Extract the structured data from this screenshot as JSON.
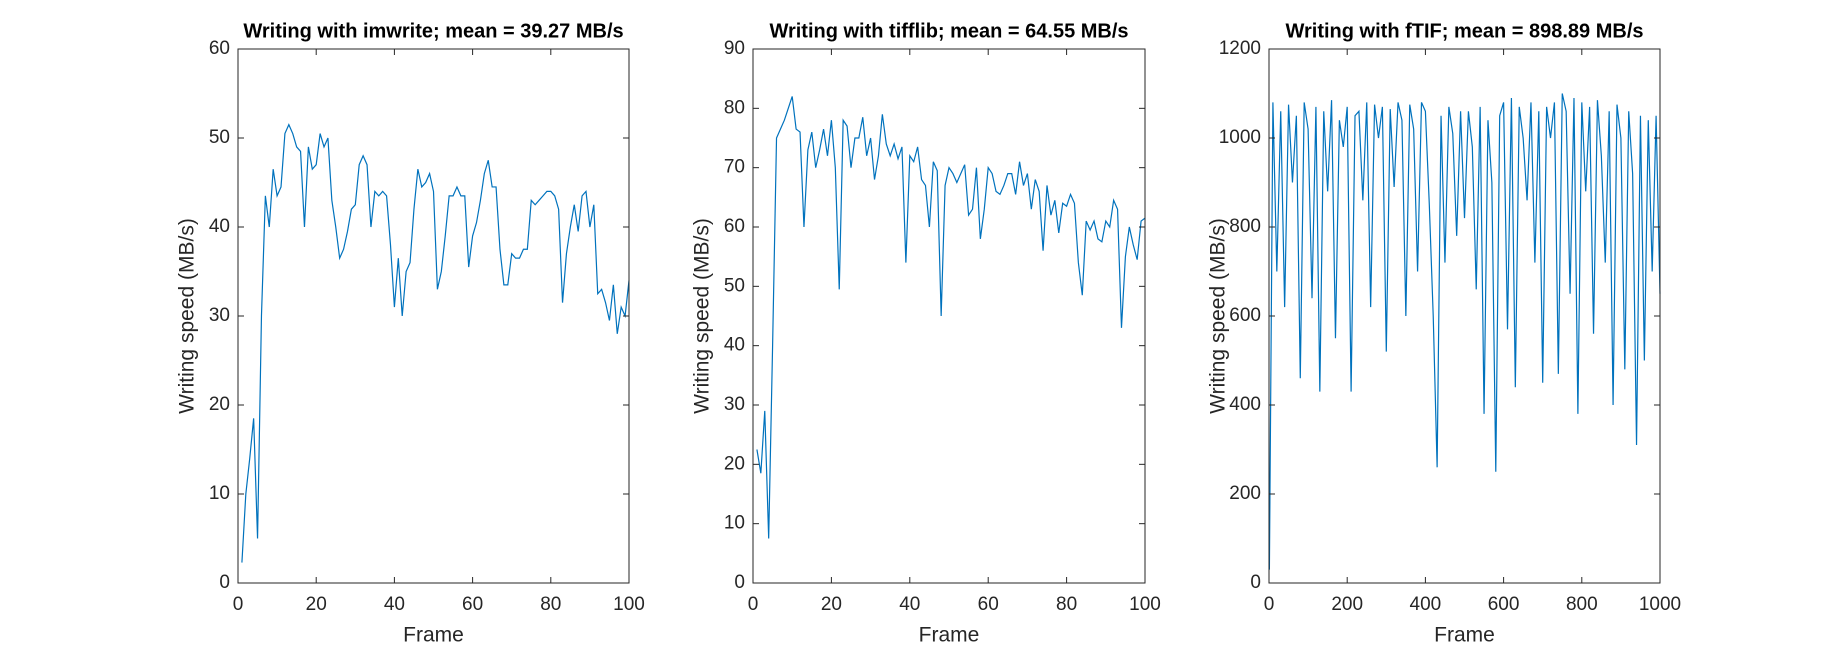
{
  "chart_data": [
    {
      "type": "line",
      "title": "Writing with imwrite; mean = 39.27 MB/s",
      "xlabel": "Frame",
      "ylabel": "Writing speed (MB/s)",
      "color": "#0072bd",
      "xlim": [
        0,
        100
      ],
      "xticks": [
        0,
        20,
        40,
        60,
        80,
        100
      ],
      "ylim": [
        0,
        60
      ],
      "yticks": [
        0,
        10,
        20,
        30,
        40,
        50,
        60
      ],
      "x": [
        1,
        2,
        3,
        4,
        5,
        6,
        7,
        8,
        9,
        10,
        11,
        12,
        13,
        14,
        15,
        16,
        17,
        18,
        19,
        20,
        21,
        22,
        23,
        24,
        25,
        26,
        27,
        28,
        29,
        30,
        31,
        32,
        33,
        34,
        35,
        36,
        37,
        38,
        39,
        40,
        41,
        42,
        43,
        44,
        45,
        46,
        47,
        48,
        49,
        50,
        51,
        52,
        53,
        54,
        55,
        56,
        57,
        58,
        59,
        60,
        61,
        62,
        63,
        64,
        65,
        66,
        67,
        68,
        69,
        70,
        71,
        72,
        73,
        74,
        75,
        76,
        77,
        78,
        79,
        80,
        81,
        82,
        83,
        84,
        85,
        86,
        87,
        88,
        89,
        90,
        91,
        92,
        93,
        94,
        95,
        96,
        97,
        98,
        99,
        100
      ],
      "values": [
        2.3,
        10,
        14,
        18.5,
        5,
        30,
        43.5,
        40,
        46.5,
        43.5,
        44.5,
        50.5,
        51.5,
        50.5,
        49,
        48.5,
        40,
        49,
        46.5,
        47,
        50.5,
        49,
        50,
        43,
        40,
        36.5,
        37.5,
        39.5,
        42,
        42.5,
        47,
        48,
        47,
        40,
        44,
        43.5,
        44,
        43.5,
        38,
        31,
        36.5,
        30,
        35,
        36,
        42,
        46.5,
        44.5,
        45,
        46,
        44,
        33,
        35,
        39,
        43.5,
        43.5,
        44.5,
        43.5,
        43.5,
        35.5,
        39,
        40.5,
        43,
        46,
        47.5,
        44.5,
        44.5,
        37.5,
        33.5,
        33.5,
        37,
        36.5,
        36.5,
        37.5,
        37.5,
        43,
        42.5,
        43,
        43.5,
        44,
        44,
        43.5,
        42,
        31.5,
        37,
        40,
        42.5,
        39.5,
        43.5,
        44,
        40,
        42.5,
        32.5,
        33,
        31.5,
        29.5,
        33.5,
        28,
        31,
        30,
        34
      ]
    },
    {
      "type": "line",
      "title": "Writing with tifflib; mean = 64.55 MB/s",
      "xlabel": "Frame",
      "ylabel": "Writing speed (MB/s)",
      "color": "#0072bd",
      "xlim": [
        0,
        100
      ],
      "xticks": [
        0,
        20,
        40,
        60,
        80,
        100
      ],
      "ylim": [
        0,
        90
      ],
      "yticks": [
        0,
        10,
        20,
        30,
        40,
        50,
        60,
        70,
        80,
        90
      ],
      "x": [
        1,
        2,
        3,
        4,
        5,
        6,
        7,
        8,
        9,
        10,
        11,
        12,
        13,
        14,
        15,
        16,
        17,
        18,
        19,
        20,
        21,
        22,
        23,
        24,
        25,
        26,
        27,
        28,
        29,
        30,
        31,
        32,
        33,
        34,
        35,
        36,
        37,
        38,
        39,
        40,
        41,
        42,
        43,
        44,
        45,
        46,
        47,
        48,
        49,
        50,
        51,
        52,
        53,
        54,
        55,
        56,
        57,
        58,
        59,
        60,
        61,
        62,
        63,
        64,
        65,
        66,
        67,
        68,
        69,
        70,
        71,
        72,
        73,
        74,
        75,
        76,
        77,
        78,
        79,
        80,
        81,
        82,
        83,
        84,
        85,
        86,
        87,
        88,
        89,
        90,
        91,
        92,
        93,
        94,
        95,
        96,
        97,
        98,
        99,
        100
      ],
      "values": [
        22.5,
        18.5,
        29,
        7.5,
        40,
        75,
        76.5,
        78,
        80,
        82,
        76.5,
        76,
        60,
        73,
        76,
        70,
        73,
        76.5,
        72,
        78,
        70,
        49.5,
        78,
        77,
        70,
        75,
        75,
        78.5,
        72,
        75,
        68,
        72,
        79,
        74,
        72,
        74,
        71.5,
        73.5,
        54,
        72,
        71,
        73.5,
        68,
        67,
        60,
        71,
        69.5,
        45,
        67,
        70,
        69,
        67.5,
        69,
        70.5,
        62,
        63,
        70,
        58,
        63,
        70,
        69,
        66,
        65.5,
        67,
        69,
        69,
        65.5,
        71,
        67,
        69,
        63,
        68,
        66,
        56,
        67,
        62,
        64.5,
        59,
        64,
        63.5,
        65.5,
        64,
        54,
        48.5,
        61,
        59.5,
        61,
        58,
        57.5,
        61,
        60,
        64.5,
        63,
        43,
        55,
        60,
        57,
        54.5,
        61,
        61.5
      ]
    },
    {
      "type": "line",
      "title": "Writing with fTIF; mean = 898.89 MB/s",
      "xlabel": "Frame",
      "ylabel": "Writing speed (MB/s)",
      "color": "#0072bd",
      "xlim": [
        0,
        1000
      ],
      "xticks": [
        0,
        200,
        400,
        600,
        800,
        1000
      ],
      "ylim": [
        0,
        1200
      ],
      "yticks": [
        0,
        200,
        400,
        600,
        800,
        1000,
        1200
      ],
      "x": [
        1,
        10,
        20,
        30,
        40,
        50,
        60,
        70,
        80,
        90,
        100,
        110,
        120,
        130,
        140,
        150,
        160,
        170,
        180,
        190,
        200,
        210,
        220,
        230,
        240,
        250,
        260,
        270,
        280,
        290,
        300,
        310,
        320,
        330,
        340,
        350,
        360,
        370,
        380,
        390,
        400,
        410,
        420,
        430,
        440,
        450,
        460,
        470,
        480,
        490,
        500,
        510,
        520,
        530,
        540,
        550,
        560,
        570,
        580,
        590,
        600,
        610,
        620,
        630,
        640,
        650,
        660,
        670,
        680,
        690,
        700,
        710,
        720,
        730,
        740,
        750,
        760,
        770,
        780,
        790,
        800,
        810,
        820,
        830,
        840,
        850,
        860,
        870,
        880,
        890,
        900,
        910,
        920,
        930,
        940,
        950,
        960,
        970,
        980,
        990,
        1000
      ],
      "values": [
        30,
        1080,
        700,
        1060,
        620,
        1075,
        900,
        1050,
        460,
        1080,
        1020,
        640,
        1070,
        430,
        1060,
        880,
        1085,
        550,
        1040,
        980,
        1070,
        430,
        1050,
        1060,
        860,
        1080,
        620,
        1075,
        1000,
        1070,
        520,
        1065,
        890,
        1080,
        1040,
        600,
        1075,
        1020,
        700,
        1080,
        1060,
        850,
        600,
        260,
        1050,
        720,
        1070,
        1010,
        780,
        1060,
        820,
        1060,
        980,
        660,
        1070,
        380,
        1040,
        900,
        250,
        1050,
        1080,
        570,
        1090,
        440,
        1070,
        1000,
        860,
        1080,
        720,
        1060,
        450,
        1070,
        1000,
        1080,
        470,
        1100,
        1060,
        650,
        1090,
        380,
        1080,
        880,
        1070,
        560,
        1085,
        960,
        720,
        1060,
        400,
        1075,
        1000,
        480,
        1060,
        920,
        310,
        1050,
        500,
        1040,
        700,
        1050,
        650
      ]
    }
  ]
}
